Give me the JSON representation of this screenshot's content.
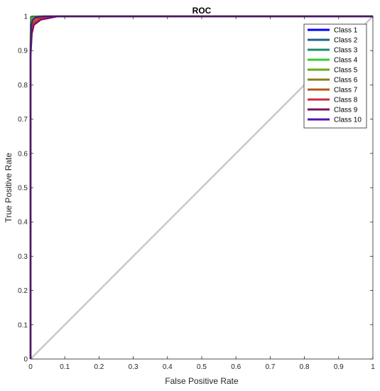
{
  "chart_data": {
    "type": "line",
    "title": "ROC",
    "xlabel": "False Positive Rate",
    "ylabel": "True Positive Rate",
    "xlim": [
      0,
      1
    ],
    "ylim": [
      0,
      1
    ],
    "xticks": [
      "0",
      "0.1",
      "0.2",
      "0.3",
      "0.4",
      "0.5",
      "0.6",
      "0.7",
      "0.8",
      "0.9",
      "1"
    ],
    "yticks": [
      "0",
      "0.1",
      "0.2",
      "0.3",
      "0.4",
      "0.5",
      "0.6",
      "0.7",
      "0.8",
      "0.9",
      "1"
    ],
    "grid": false,
    "legend_position": "top-right",
    "reference_line": {
      "x": [
        0,
        1
      ],
      "y": [
        0,
        1
      ],
      "color": "#c8c8c8"
    },
    "series": [
      {
        "name": "Class 1",
        "color": "#0000ff",
        "x": [
          0,
          0,
          0.002,
          0.005,
          0.01,
          0.02,
          1
        ],
        "y": [
          0,
          0.93,
          0.975,
          0.99,
          0.996,
          1,
          1
        ]
      },
      {
        "name": "Class 2",
        "color": "#1f5f8b",
        "x": [
          0,
          0,
          0.003,
          0.006,
          0.012,
          0.03,
          1
        ],
        "y": [
          0,
          0.92,
          0.97,
          0.985,
          0.995,
          1,
          1
        ]
      },
      {
        "name": "Class 3",
        "color": "#1a8a6a",
        "x": [
          0,
          0,
          0.002,
          0.004,
          0.01,
          0.02,
          1
        ],
        "y": [
          0,
          0.95,
          0.985,
          0.993,
          0.998,
          1,
          1
        ]
      },
      {
        "name": "Class 4",
        "color": "#33cc33",
        "x": [
          0,
          0,
          0.001,
          0.003,
          0.005,
          0.01,
          1
        ],
        "y": [
          0,
          0.97,
          0.99,
          0.997,
          1,
          1,
          1
        ]
      },
      {
        "name": "Class 5",
        "color": "#66aa22",
        "x": [
          0,
          0,
          0.002,
          0.005,
          0.01,
          0.02,
          1
        ],
        "y": [
          0,
          0.94,
          0.98,
          0.99,
          0.997,
          1,
          1
        ]
      },
      {
        "name": "Class 6",
        "color": "#8b7d1a",
        "x": [
          0,
          0,
          0.003,
          0.007,
          0.015,
          0.04,
          1
        ],
        "y": [
          0,
          0.91,
          0.965,
          0.985,
          0.995,
          1,
          1
        ]
      },
      {
        "name": "Class 7",
        "color": "#b5541a",
        "x": [
          0,
          0,
          0.003,
          0.008,
          0.018,
          0.05,
          1
        ],
        "y": [
          0,
          0.9,
          0.96,
          0.98,
          0.993,
          1,
          1
        ]
      },
      {
        "name": "Class 8",
        "color": "#cc2a3a",
        "x": [
          0,
          0,
          0.004,
          0.01,
          0.025,
          0.06,
          1
        ],
        "y": [
          0,
          0.89,
          0.955,
          0.978,
          0.992,
          1,
          1
        ]
      },
      {
        "name": "Class 9",
        "color": "#7a1060",
        "x": [
          0,
          0,
          0.004,
          0.01,
          0.03,
          0.08,
          1
        ],
        "y": [
          0,
          0.88,
          0.95,
          0.975,
          0.99,
          1,
          1
        ]
      },
      {
        "name": "Class 10",
        "color": "#5b0fa8",
        "x": [
          0,
          0,
          0.002,
          0.006,
          0.015,
          0.04,
          1
        ],
        "y": [
          0,
          0.9,
          0.97,
          0.99,
          0.997,
          1,
          1
        ]
      }
    ]
  }
}
